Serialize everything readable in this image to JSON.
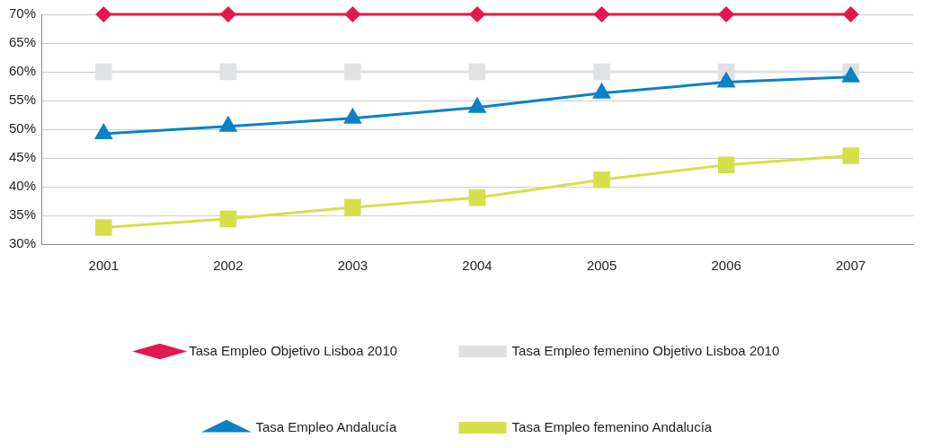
{
  "chart_data": {
    "type": "line",
    "categories": [
      "2001",
      "2002",
      "2003",
      "2004",
      "2005",
      "2006",
      "2007"
    ],
    "series": [
      {
        "name": "Tasa Empleo Objetivo Lisboa 2010",
        "color": "#e2184f",
        "marker": "diamond",
        "values": [
          70,
          70,
          70,
          70,
          70,
          70,
          70
        ]
      },
      {
        "name": "Tasa Empleo femenino Objetivo Lisboa 2010",
        "color": "#e0e1e3",
        "marker": "square",
        "values": [
          60,
          60,
          60,
          60,
          60,
          60,
          60
        ]
      },
      {
        "name": "Tasa Empleo Andalucía",
        "color": "#0a82c4",
        "marker": "triangle",
        "values": [
          49.2,
          50.5,
          51.9,
          53.8,
          56.3,
          58.2,
          59.1
        ]
      },
      {
        "name": "Tasa Empleo femenino Andalucía",
        "color": "#d4e04a",
        "marker": "square",
        "values": [
          32.9,
          34.4,
          36.4,
          38.1,
          41.2,
          43.8,
          45.4
        ]
      }
    ],
    "ylim": [
      30,
      70
    ],
    "yticks": [
      {
        "value": 30,
        "label": "30%"
      },
      {
        "value": 35,
        "label": "35%"
      },
      {
        "value": 40,
        "label": "40%"
      },
      {
        "value": 45,
        "label": "45%"
      },
      {
        "value": 50,
        "label": "50%"
      },
      {
        "value": 55,
        "label": "55%"
      },
      {
        "value": 60,
        "label": "60%"
      },
      {
        "value": 65,
        "label": "65%"
      },
      {
        "value": 70,
        "label": "70%"
      }
    ],
    "grid": "y",
    "legend": "bottom",
    "line_style": "solid"
  }
}
